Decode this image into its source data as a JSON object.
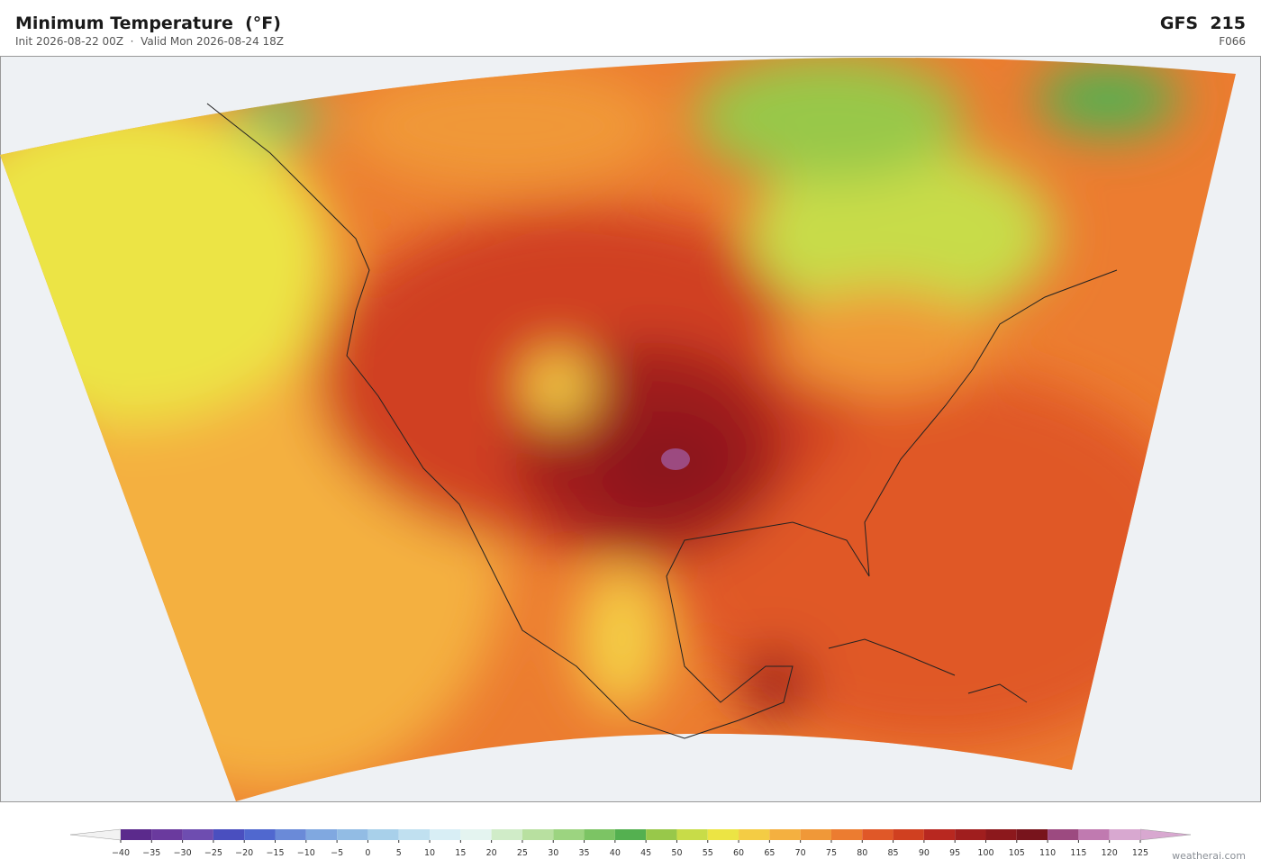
{
  "header": {
    "title": "Minimum Temperature  (°F)",
    "subtitle": "Init 2026-08-22 00Z  ·  Valid Mon 2026-08-24 18Z",
    "model": "GFS  215",
    "forecast_hour": "F066"
  },
  "colorbar": {
    "ticks": [
      {
        "value": -40,
        "label": "−40"
      },
      {
        "value": -35,
        "label": "−35"
      },
      {
        "value": -30,
        "label": "−30"
      },
      {
        "value": -25,
        "label": "−25"
      },
      {
        "value": -20,
        "label": "−20"
      },
      {
        "value": -15,
        "label": "−15"
      },
      {
        "value": -10,
        "label": "−10"
      },
      {
        "value": -5,
        "label": "−5"
      },
      0,
      5,
      10,
      15,
      20,
      25,
      30,
      35,
      40,
      45,
      50,
      55,
      60,
      65,
      70,
      75,
      80,
      85,
      90,
      95,
      100,
      105,
      110,
      115,
      120,
      125
    ],
    "colors": [
      "#5b2a8c",
      "#6a3a9e",
      "#6e4db0",
      "#4a4fbf",
      "#5068cf",
      "#6a8ad8",
      "#80a8e0",
      "#92bce4",
      "#a8d0ea",
      "#c0e0f0",
      "#d8eef5",
      "#e4f4f0",
      "#d0ecc8",
      "#b8e0a0",
      "#9cd480",
      "#7cc464",
      "#54b050",
      "#98c84a",
      "#c8dc48",
      "#ece444",
      "#f4cc44",
      "#f4b040",
      "#f09838",
      "#ec7c30",
      "#e05828",
      "#d04020",
      "#b82820",
      "#a01e1e",
      "#8c181c",
      "#78141c",
      "#9c4a80",
      "#c07ab0",
      "#d8a8d0"
    ],
    "under_color": "#f2f2f2",
    "over_color": "#d8a8d0"
  },
  "watermark": "weatherai.com"
}
